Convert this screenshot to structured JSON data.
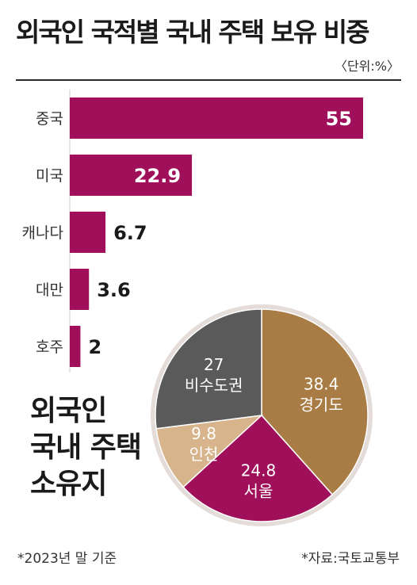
{
  "title": "외국인 국적별 국내 주택 보유 비중",
  "unit": "〈단위:%〉",
  "pie_caption": [
    "외국인",
    "국내 주택",
    "소유지"
  ],
  "footnote": "*2023년 말 기준",
  "source": "*자료:국토교통부",
  "colors": {
    "bar": "#a0105a",
    "pie_gyeonggi": "#a87c44",
    "pie_seoul": "#a0105a",
    "pie_incheon": "#d8b48c",
    "pie_noncapital": "#5a5a5a",
    "pie_ring": "#e4dcd8"
  },
  "chart_data": [
    {
      "type": "bar",
      "orientation": "horizontal",
      "categories": [
        "중국",
        "미국",
        "캐나다",
        "대만",
        "호주"
      ],
      "values": [
        55,
        22.9,
        6.7,
        3.6,
        2
      ],
      "value_labels": [
        "55",
        "22.9",
        "6.7",
        "3.6",
        "2"
      ],
      "xlim": [
        0,
        55
      ],
      "grid": false
    },
    {
      "type": "pie",
      "slices": [
        {
          "label": "경기도",
          "value": 38.4,
          "value_label": "38.4"
        },
        {
          "label": "서울",
          "value": 24.8,
          "value_label": "24.8"
        },
        {
          "label": "인천",
          "value": 9.8,
          "value_label": "9.8"
        },
        {
          "label": "비수도권",
          "value": 27,
          "value_label": "27"
        }
      ]
    }
  ]
}
